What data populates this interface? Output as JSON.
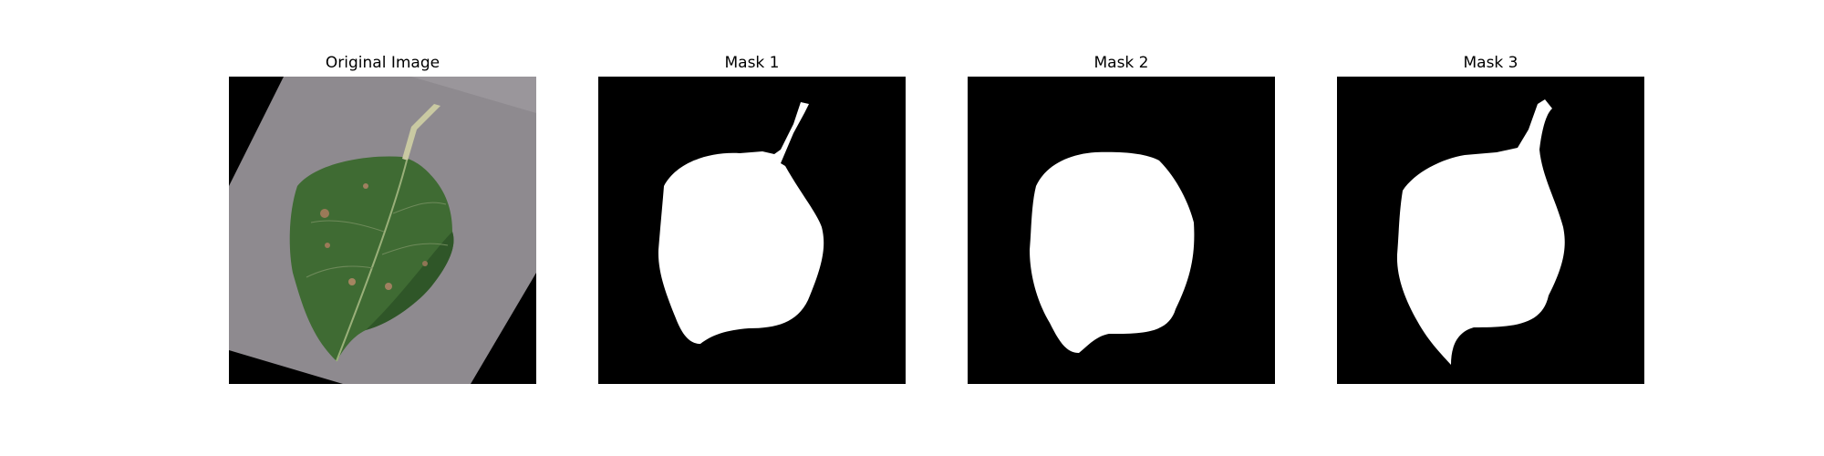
{
  "panels": [
    {
      "title": "Original Image",
      "kind": "photo"
    },
    {
      "title": "Mask 1",
      "kind": "mask"
    },
    {
      "title": "Mask 2",
      "kind": "mask"
    },
    {
      "title": "Mask 3",
      "kind": "mask"
    }
  ],
  "colors": {
    "background": "#ffffff",
    "mask_background": "#000000",
    "mask_foreground": "#ffffff",
    "photo_surface": "#8e8a8f",
    "leaf": "#3f6b33"
  }
}
